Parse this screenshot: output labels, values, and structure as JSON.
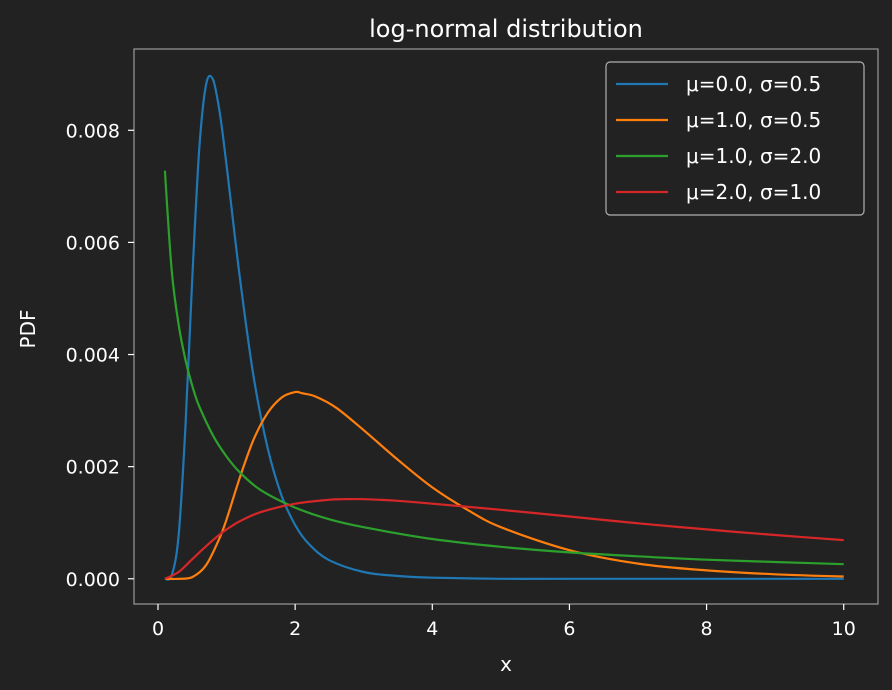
{
  "chart_data": {
    "type": "line",
    "title": "log-normal distribution",
    "xlabel": "x",
    "ylabel": "PDF",
    "xlim": [
      -0.35,
      10.5
    ],
    "ylim": [
      -0.00045,
      0.00945
    ],
    "xticks": [
      0,
      2,
      4,
      6,
      8,
      10
    ],
    "xtick_labels": [
      "0",
      "2",
      "4",
      "6",
      "8",
      "10"
    ],
    "yticks": [
      0.0,
      0.002,
      0.004,
      0.006,
      0.008
    ],
    "ytick_labels": [
      "0.000",
      "0.002",
      "0.004",
      "0.006",
      "0.008"
    ],
    "grid": false,
    "legend_position": "top-right",
    "background": "#222222",
    "series": [
      {
        "name": "μ=0.0, σ=0.5",
        "color": "#1f77b4",
        "x": [
          0.1,
          0.2,
          0.3,
          0.4,
          0.5,
          0.6,
          0.7,
          0.8,
          0.9,
          1.0,
          1.2,
          1.4,
          1.6,
          1.8,
          2.0,
          2.2,
          2.5,
          3.0,
          3.5,
          4.0,
          5.0,
          6.0,
          8.0,
          10.0
        ],
        "y": [
          0.0,
          6e-05,
          0.00077,
          0.0027,
          0.00537,
          0.00763,
          0.00881,
          0.00891,
          0.00832,
          0.00737,
          0.00531,
          0.00356,
          0.00233,
          0.00149,
          0.00096,
          0.00062,
          0.00033,
          0.00012,
          5e-05,
          2e-05,
          0.0,
          0.0,
          0.0,
          0.0
        ]
      },
      {
        "name": "μ=1.0, σ=0.5",
        "color": "#ff7f0e",
        "x": [
          0.1,
          0.3,
          0.5,
          0.7,
          0.9,
          1.0,
          1.2,
          1.4,
          1.6,
          1.8,
          2.0,
          2.1,
          2.3,
          2.6,
          3.0,
          3.5,
          4.0,
          4.5,
          5.0,
          6.0,
          7.0,
          8.0,
          9.0,
          10.0
        ],
        "y": [
          0.0,
          0.0,
          3e-05,
          0.00024,
          0.00073,
          0.00106,
          0.00183,
          0.0025,
          0.00296,
          0.00323,
          0.00333,
          0.00331,
          0.00325,
          0.00305,
          0.00265,
          0.00212,
          0.00163,
          0.00124,
          0.00092,
          0.00051,
          0.00027,
          0.00015,
          8e-05,
          4e-05
        ]
      },
      {
        "name": "μ=1.0, σ=2.0",
        "color": "#2ca02c",
        "x": [
          0.1,
          0.2,
          0.3,
          0.4,
          0.5,
          0.6,
          0.8,
          1.0,
          1.2,
          1.5,
          2.0,
          2.5,
          3.0,
          4.0,
          5.0,
          6.0,
          7.0,
          8.0,
          9.0,
          10.0
        ],
        "y": [
          0.00728,
          0.0055,
          0.00454,
          0.00391,
          0.00344,
          0.00308,
          0.00256,
          0.00218,
          0.00189,
          0.00158,
          0.00127,
          0.00106,
          0.00092,
          0.00071,
          0.00057,
          0.00047,
          0.0004,
          0.00034,
          0.0003,
          0.00026
        ]
      },
      {
        "name": "μ=2.0, σ=1.0",
        "color": "#d62728",
        "x": [
          0.1,
          0.3,
          0.5,
          0.7,
          0.9,
          1.0,
          1.2,
          1.5,
          2.0,
          2.5,
          2.7,
          3.0,
          3.5,
          4.0,
          5.0,
          6.0,
          7.0,
          8.0,
          9.0,
          10.0
        ],
        "y": [
          0.0,
          0.00012,
          0.00035,
          0.00058,
          0.00079,
          0.00088,
          0.00103,
          0.00119,
          0.00134,
          0.00141,
          0.00142,
          0.00142,
          0.00139,
          0.00134,
          0.00123,
          0.00111,
          0.00099,
          0.00088,
          0.00078,
          0.00069
        ]
      }
    ]
  }
}
